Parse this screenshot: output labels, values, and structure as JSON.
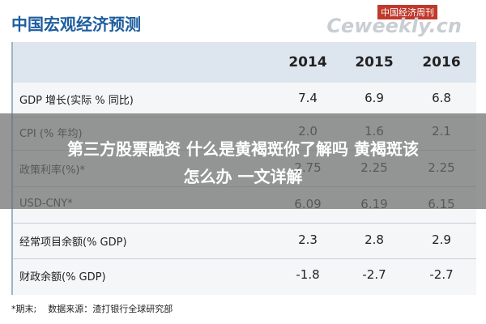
{
  "header": {
    "title": "中国宏观经济预测",
    "logo": "中国经济周刊",
    "logo_sub": "Ceweekly.cn"
  },
  "table": {
    "columns": [
      "2014",
      "2015",
      "2016"
    ],
    "rows": [
      [
        "GDP 增长(实际 % 同比)",
        "7.4",
        "6.9",
        "6.8"
      ],
      [
        "CPI (% 年均)",
        "2.0",
        "1.6",
        "2.1"
      ],
      [
        "政策利率(%)*",
        "2.75",
        "2.25",
        "2.25"
      ],
      [
        "USD-CNY*",
        "6.09",
        "6.19",
        "6.15"
      ],
      [
        "经常项目余额(% GDP)",
        "2.3",
        "2.8",
        "2.9"
      ],
      [
        "财政余额(% GDP)",
        "-1.8",
        "-2.7",
        "-2.7"
      ]
    ]
  },
  "footnote": "*期末;    数据来源：渣打银行全球研究部",
  "overlay": {
    "line1": "第三方股票融资 什么是黄褐斑你了解吗 黄褐斑该",
    "line2": "怎么办 一文详解"
  }
}
